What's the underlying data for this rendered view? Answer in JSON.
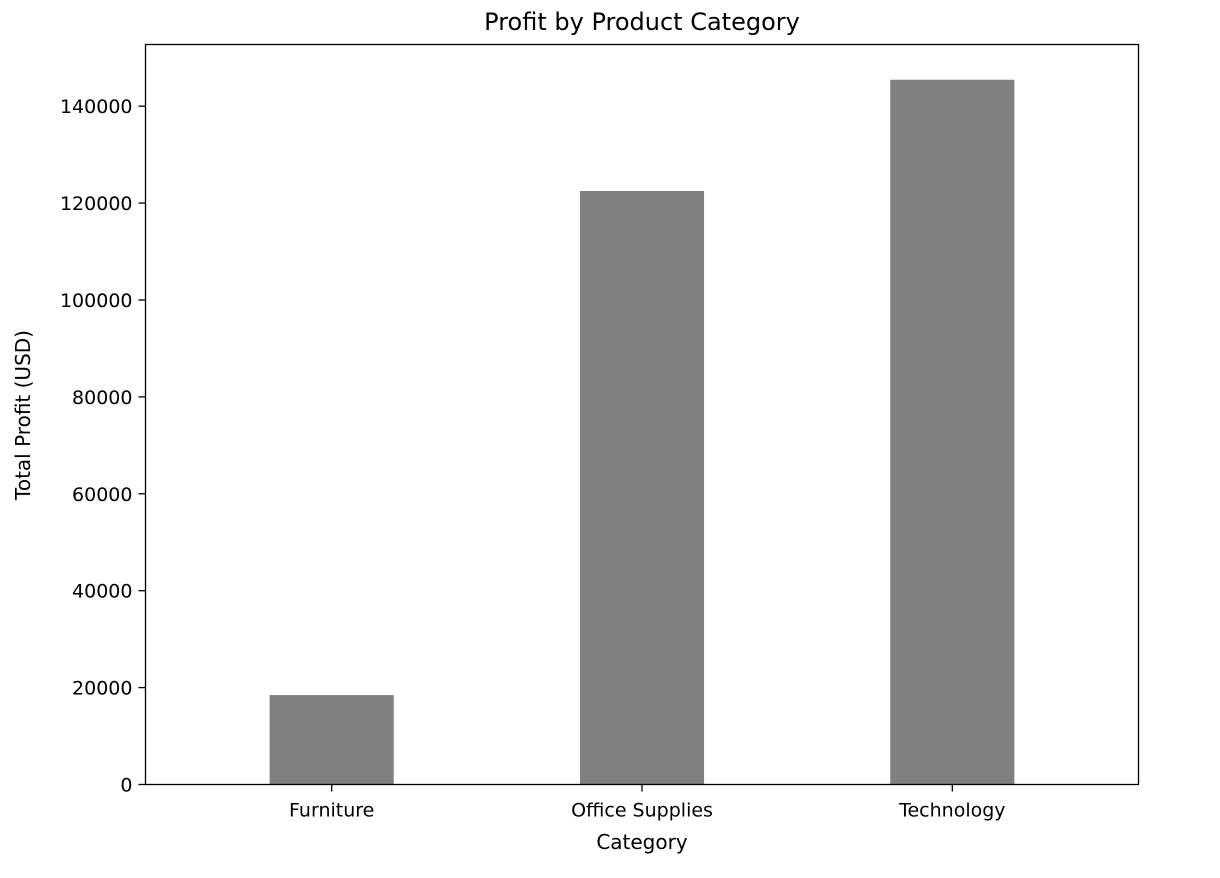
{
  "chart_data": {
    "type": "bar",
    "title": "Profit by Product Category",
    "xlabel": "Category",
    "ylabel": "Total Profit (USD)",
    "categories": [
      "Furniture",
      "Office Supplies",
      "Technology"
    ],
    "values": [
      18451.27,
      122490.8,
      145454.95
    ],
    "ylim": [
      0,
      152727.7
    ],
    "yticks": [
      0,
      20000,
      40000,
      60000,
      80000,
      100000,
      120000,
      140000
    ],
    "ytick_labels": [
      "0",
      "20000",
      "40000",
      "60000",
      "80000",
      "100000",
      "120000",
      "140000"
    ],
    "bar_color": "#808080",
    "grid": false,
    "legend": "none"
  }
}
